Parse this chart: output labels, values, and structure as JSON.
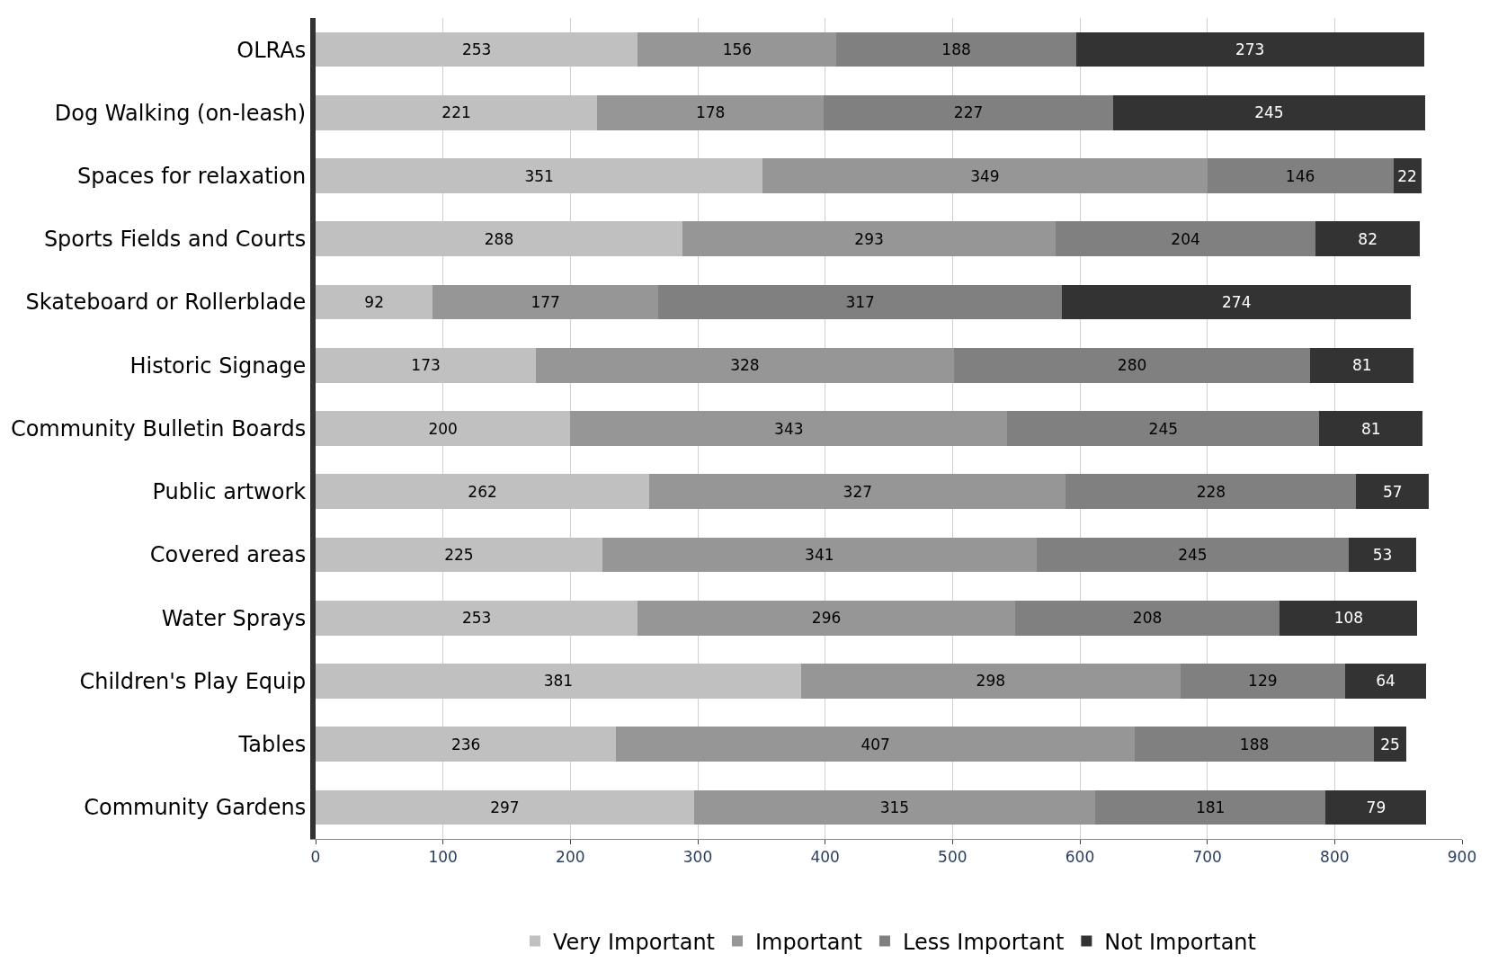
{
  "chart_data": {
    "type": "bar",
    "orientation": "horizontal",
    "stacked": true,
    "data_labels": true,
    "grid": "x",
    "legend": "bottom",
    "categories": [
      "OLRAs",
      "Dog Walking (on-leash)",
      "Spaces for relaxation",
      "Sports Fields and Courts",
      "Skateboard or Rollerblade",
      "Historic Signage",
      "Community Bulletin Boards",
      "Public artwork",
      "Covered areas",
      "Water Sprays",
      "Children's Play Equip",
      "Tables",
      "Community Gardens"
    ],
    "series": [
      {
        "name": "Very Important",
        "color": "#c0c0c0",
        "values": [
          253,
          221,
          351,
          288,
          92,
          173,
          200,
          262,
          225,
          253,
          381,
          236,
          297
        ]
      },
      {
        "name": "Important",
        "color": "#969696",
        "values": [
          156,
          178,
          349,
          293,
          177,
          328,
          343,
          327,
          341,
          296,
          298,
          407,
          315
        ]
      },
      {
        "name": "Less Important",
        "color": "#808080",
        "values": [
          188,
          227,
          146,
          204,
          317,
          280,
          245,
          228,
          245,
          208,
          129,
          188,
          181
        ]
      },
      {
        "name": "Not Important",
        "color": "#333333",
        "values": [
          273,
          245,
          22,
          82,
          274,
          81,
          81,
          57,
          53,
          108,
          64,
          25,
          79
        ]
      }
    ],
    "xlim": [
      0,
      900
    ],
    "xticks": [
      0,
      100,
      200,
      300,
      400,
      500,
      600,
      700,
      800,
      900
    ]
  }
}
